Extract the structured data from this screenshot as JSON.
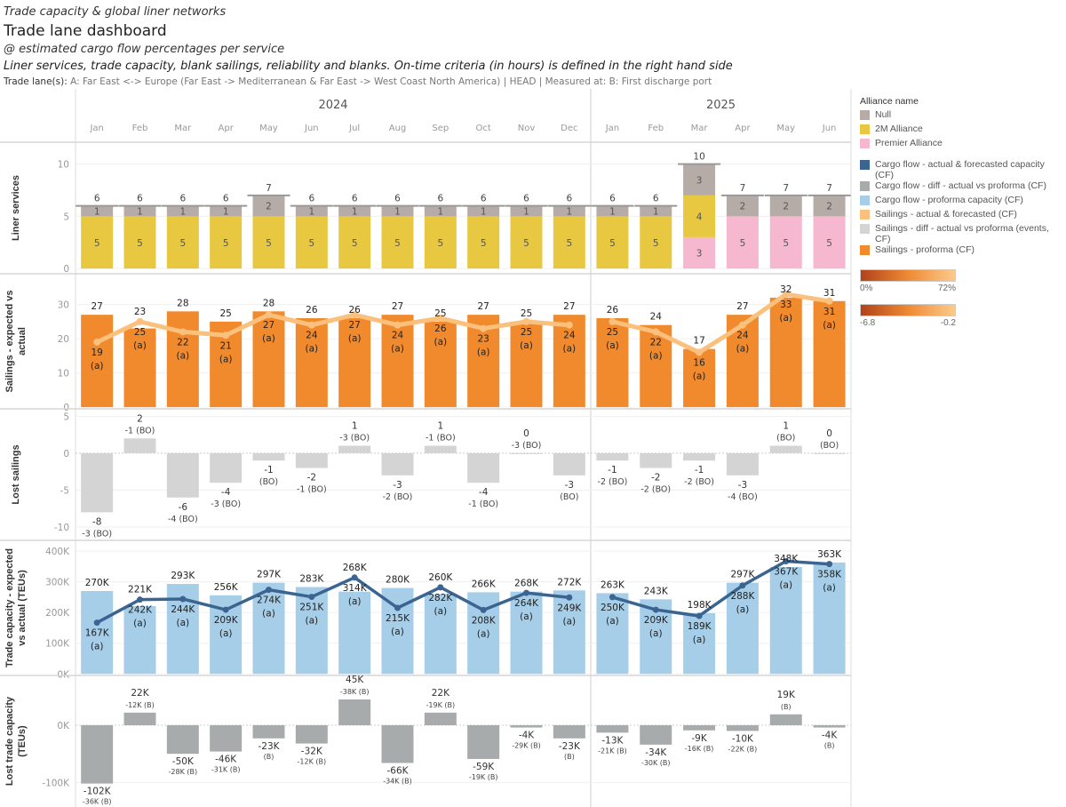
{
  "header": {
    "kicker": "Trade capacity & global liner networks",
    "title": "Trade lane dashboard",
    "subtitle": "@ estimated cargo flow percentages per service",
    "description": "Liner services, trade capacity, blank sailings, reliability and blanks. On-time criteria (in hours) is defined  in the right hand side",
    "filter_label": "Trade lane(s):",
    "filter_value": " A: Far East <-> Europe (Far East -> Mediterranean & Far East -> West Coast North America) | HEAD | Measured at: B: First discharge port"
  },
  "years": [
    "2024",
    "2025"
  ],
  "months": [
    "Jan",
    "Feb",
    "Mar",
    "Apr",
    "May",
    "Jun",
    "Jul",
    "Aug",
    "Sep",
    "Oct",
    "Nov",
    "Dec",
    "Jan",
    "Feb",
    "Mar",
    "Apr",
    "May",
    "Jun"
  ],
  "legend": {
    "title": "Alliance name",
    "items": [
      {
        "label": "Null",
        "color": "#b5aca8"
      },
      {
        "label": "2M Alliance",
        "color": "#e8c840"
      },
      {
        "label": "Premier Alliance",
        "color": "#f5b8cf"
      }
    ],
    "measures": [
      {
        "label": "Cargo flow - actual & forecasted capacity (CF)",
        "color": "#3b6590"
      },
      {
        "label": "Cargo flow - diff - actual vs proforma (CF)",
        "color": "#a8abab"
      },
      {
        "label": "Cargo flow - proforma capacity (CF)",
        "color": "#a6cee8"
      },
      {
        "label": "Sailings - actual & forecasted (CF)",
        "color": "#fbc07c"
      },
      {
        "label": "Sailings - diff - actual vs proforma (events, CF)",
        "color": "#d4d4d4"
      },
      {
        "label": "Sailings - proforma (CF)",
        "color": "#f08a2c"
      }
    ],
    "gradient1": {
      "min": "0%",
      "max": "72%"
    },
    "gradient2": {
      "min": "-6.8",
      "max": "-0.2"
    }
  },
  "chart_data": [
    {
      "type": "bar",
      "stacked": true,
      "title": [
        "Liner services"
      ],
      "ylim": [
        -0.5,
        12.1
      ],
      "yticks": [
        0,
        5,
        10
      ],
      "tick_labels": [
        "0",
        "5",
        "10"
      ],
      "series": [
        {
          "name": "Premier Alliance",
          "color": "#f5b8cf",
          "values": [
            0,
            0,
            0,
            0,
            0,
            0,
            0,
            0,
            0,
            0,
            0,
            0,
            0,
            0,
            3,
            5,
            5,
            5
          ]
        },
        {
          "name": "2M Alliance",
          "color": "#e8c840",
          "values": [
            5,
            5,
            5,
            5,
            5,
            5,
            5,
            5,
            5,
            5,
            5,
            5,
            5,
            5,
            4,
            0,
            0,
            0
          ]
        },
        {
          "name": "Null",
          "color": "#b5aca8",
          "values": [
            1,
            1,
            1,
            1,
            2,
            1,
            1,
            1,
            1,
            1,
            1,
            1,
            1,
            1,
            3,
            2,
            2,
            2
          ]
        }
      ],
      "totals": [
        6,
        6,
        6,
        6,
        7,
        6,
        6,
        6,
        6,
        6,
        6,
        6,
        6,
        6,
        10,
        7,
        7,
        7
      ]
    },
    {
      "type": "bar+line",
      "title": [
        "Sailings - expected vs",
        "actual"
      ],
      "ylim": [
        -0.5,
        39
      ],
      "yticks": [
        0,
        10,
        20,
        30
      ],
      "tick_labels": [
        "0",
        "10",
        "20",
        "30"
      ],
      "bar_series": {
        "name": "Sailings - proforma (CF)",
        "color": "#f08a2c",
        "values": [
          27,
          23,
          28,
          25,
          28,
          26,
          26,
          27,
          25,
          27,
          25,
          27,
          26,
          24,
          17,
          27,
          32,
          31
        ]
      },
      "line_series": {
        "name": "Sailings - actual & forecasted (CF)",
        "color": "#fbc07c",
        "values": [
          19,
          25,
          22,
          21,
          27,
          24,
          27,
          24,
          26,
          23,
          25,
          24,
          25,
          22,
          16,
          24,
          33,
          31
        ],
        "suffix": "(a)"
      },
      "bar_labels": [
        "27",
        "23",
        "28",
        "25",
        "28",
        "26",
        "26",
        "27",
        "25",
        "27",
        "25",
        "27",
        "26",
        "24",
        "17",
        "27",
        "32",
        "31"
      ],
      "line_labels": [
        "19",
        "25",
        "22",
        "21",
        "27",
        "24",
        "27",
        "24",
        "26",
        "23",
        "25",
        "24",
        "25",
        "22",
        "16",
        "24",
        "33",
        "31"
      ]
    },
    {
      "type": "bar",
      "title": [
        "Lost sailings"
      ],
      "ylim": [
        -11.8,
        6
      ],
      "yticks": [
        -10,
        -5,
        0,
        5
      ],
      "tick_labels": [
        "-10",
        "-5",
        "0",
        "5"
      ],
      "color": "#d4d4d4",
      "values": [
        -8,
        2,
        -6,
        -4,
        -1,
        -2,
        1,
        -3,
        1,
        -4,
        0,
        -3,
        -1,
        -2,
        -1,
        -3,
        1,
        0
      ],
      "labels": [
        "-8",
        "2",
        "-6",
        "-4",
        "-1",
        "-2",
        "1",
        "-3",
        "1",
        "-4",
        "0",
        "-3",
        "-1",
        "-2",
        "-1",
        "-3",
        "1",
        "0"
      ],
      "sublabels": [
        "-3 (BO)",
        "-1 (BO)",
        "-4 (BO)",
        "-3 (BO)",
        "(BO)",
        "-1 (BO)",
        "-3 (BO)",
        "-2 (BO)",
        "-1 (BO)",
        "-1 (BO)",
        "-3 (BO)",
        "(BO)",
        "-2 (BO)",
        "-2 (BO)",
        "-2 (BO)",
        "-4 (BO)",
        "(BO)",
        "(BO)"
      ]
    },
    {
      "type": "bar+line",
      "title": [
        "Trade capacity - expected",
        "vs actual (TEUs)"
      ],
      "ylim": [
        -5,
        435
      ],
      "yticks": [
        0,
        100,
        200,
        300,
        400
      ],
      "tick_labels": [
        "0K",
        "100K",
        "200K",
        "300K",
        "400K"
      ],
      "bar_series": {
        "name": "Cargo flow - proforma capacity (CF)",
        "color": "#a6cee8",
        "values": [
          270,
          221,
          293,
          256,
          297,
          283,
          268,
          280,
          260,
          266,
          268,
          272,
          263,
          243,
          198,
          297,
          348,
          363
        ]
      },
      "line_series": {
        "name": "Cargo flow - actual & forecasted capacity (CF)",
        "color": "#3b6590",
        "values": [
          167,
          242,
          244,
          209,
          274,
          251,
          314,
          215,
          282,
          208,
          264,
          249,
          250,
          209,
          189,
          288,
          367,
          358
        ],
        "suffix": "(a)"
      },
      "bar_labels": [
        "270K",
        "221K",
        "293K",
        "256K",
        "297K",
        "283K",
        "268K",
        "280K",
        "260K",
        "266K",
        "268K",
        "272K",
        "263K",
        "243K",
        "198K",
        "297K",
        "348K",
        "363K"
      ],
      "line_labels": [
        "167K",
        "242K",
        "244K",
        "209K",
        "274K",
        "251K",
        "314K",
        "215K",
        "282K",
        "208K",
        "264K",
        "249K",
        "250K",
        "209K",
        "189K",
        "288K",
        "367K",
        "358K"
      ]
    },
    {
      "type": "bar",
      "title": [
        "Lost trade capacity",
        "(TEUs)"
      ],
      "ylim": [
        -143,
        87
      ],
      "yticks": [
        -100,
        0
      ],
      "tick_labels": [
        "-100K",
        "0K"
      ],
      "color": "#a8abab",
      "values": [
        -102,
        22,
        -50,
        -46,
        -23,
        -32,
        45,
        -66,
        22,
        -59,
        -4,
        -23,
        -13,
        -34,
        -9,
        -10,
        19,
        -4
      ],
      "labels": [
        "-102K",
        "22K",
        "-50K",
        "-46K",
        "-23K",
        "-32K",
        "45K",
        "-66K",
        "22K",
        "-59K",
        "-4K",
        "-23K",
        "-13K",
        "-34K",
        "-9K",
        "-10K",
        "19K",
        "-4K"
      ],
      "sublabels": [
        "-36K (B)",
        "-12K (B)",
        "-28K (B)",
        "-31K (B)",
        "(B)",
        "-12K (B)",
        "-38K (B)",
        "-34K (B)",
        "-19K (B)",
        "-19K (B)",
        "-29K (B)",
        "(B)",
        "-21K (B)",
        "-30K (B)",
        "-16K (B)",
        "-22K (B)",
        "(B)",
        "(B)"
      ]
    }
  ]
}
